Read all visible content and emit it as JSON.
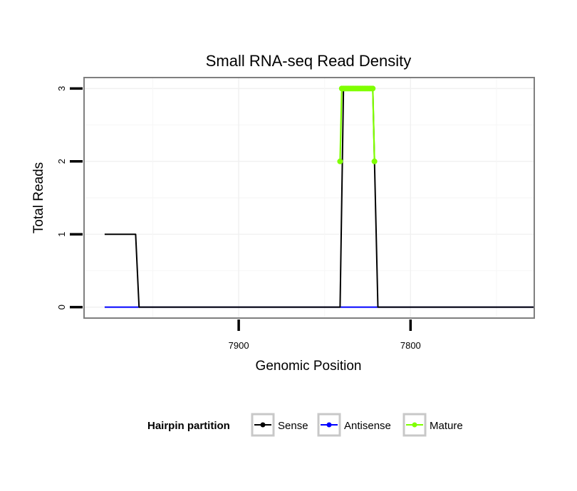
{
  "chart_data": {
    "type": "line",
    "title": "Small RNA-seq Read Density",
    "xlabel": "Genomic Position",
    "ylabel": "Total Reads",
    "x_reversed": true,
    "xlim": [
      7990,
      7728
    ],
    "ylim": [
      -0.15,
      3.15
    ],
    "x_ticks": [
      7900,
      7800
    ],
    "x_tick_labels": [
      "7900",
      "7800"
    ],
    "y_ticks": [
      0,
      1,
      2,
      3
    ],
    "y_tick_labels": [
      "0",
      "1",
      "2",
      "3"
    ],
    "grid": true,
    "legend": {
      "title": "Hairpin partition",
      "placement": "bottom"
    },
    "series": [
      {
        "name": "Sense",
        "color": "#000000",
        "x": [
          7978,
          7960,
          7958,
          7841,
          7839,
          7822,
          7819,
          7728
        ],
        "y": [
          1,
          1,
          0,
          0,
          3,
          3,
          0,
          0
        ],
        "markers": false
      },
      {
        "name": "Antisense",
        "color": "#0000ff",
        "x": [
          7978,
          7728
        ],
        "y": [
          0,
          0
        ],
        "markers": false
      },
      {
        "name": "Mature",
        "color": "#7fff00",
        "x": [
          7841,
          7840,
          7839,
          7838,
          7837,
          7836,
          7835,
          7834,
          7833,
          7832,
          7831,
          7830,
          7829,
          7828,
          7827,
          7826,
          7825,
          7824,
          7823,
          7822,
          7821
        ],
        "y": [
          2,
          3,
          3,
          3,
          3,
          3,
          3,
          3,
          3,
          3,
          3,
          3,
          3,
          3,
          3,
          3,
          3,
          3,
          3,
          3,
          2
        ],
        "markers": true
      }
    ]
  }
}
